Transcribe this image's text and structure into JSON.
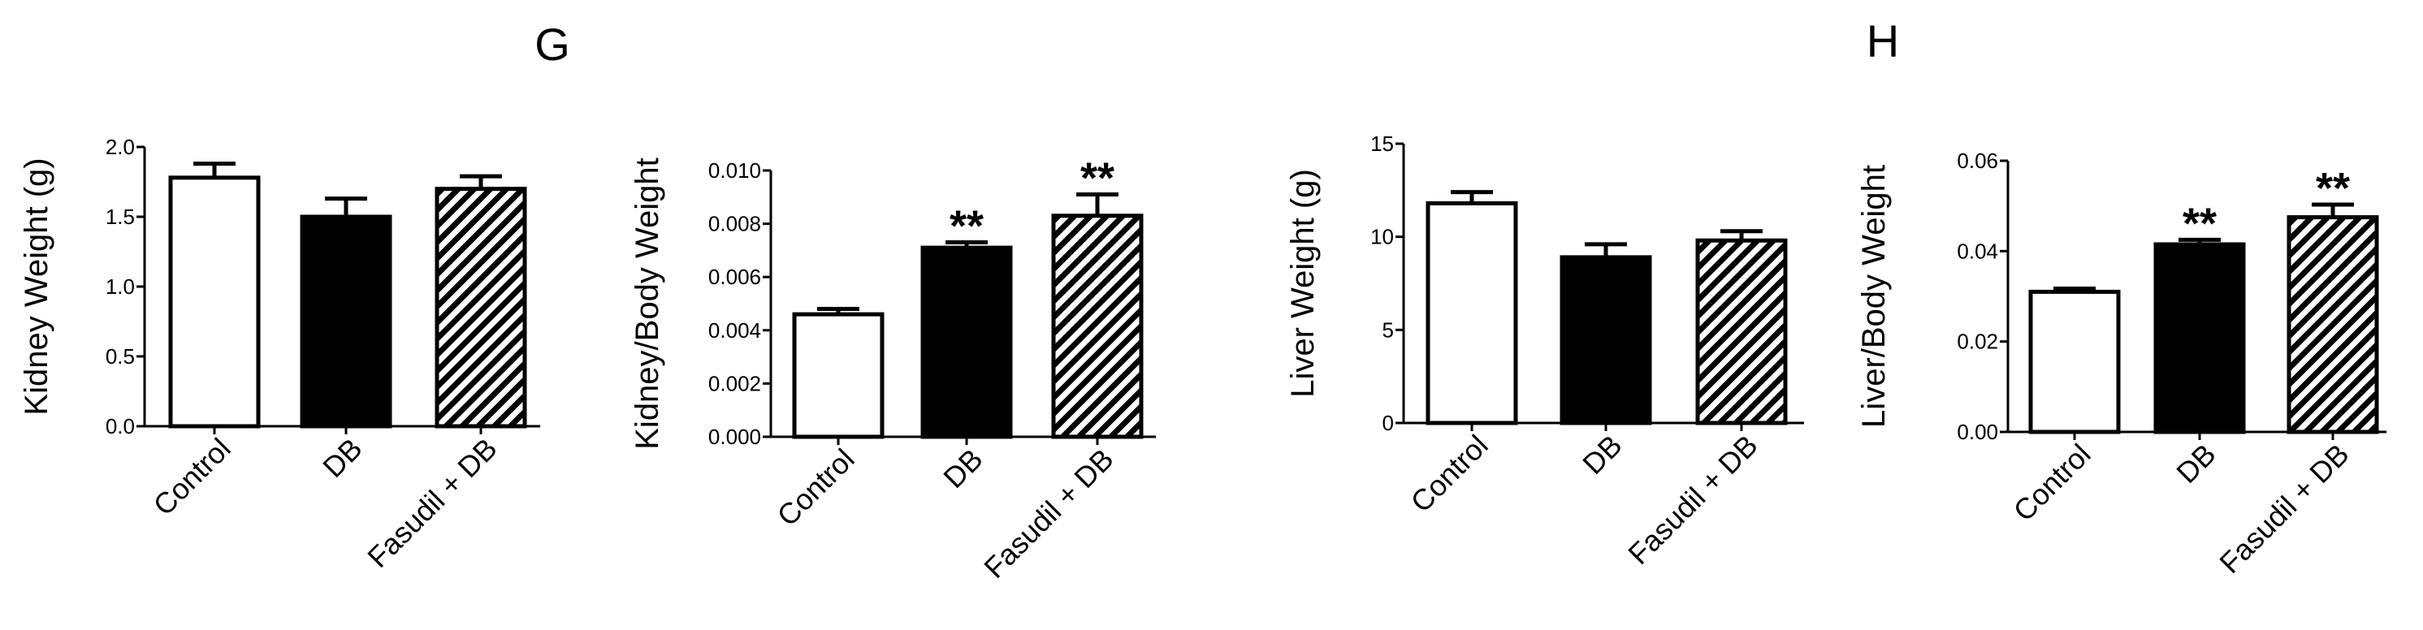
{
  "panel_labels": [
    "G",
    "H"
  ],
  "categories": [
    "Control",
    "DB",
    "Fasudil + DB"
  ],
  "bar_styles": [
    "white",
    "black",
    "hatched"
  ],
  "significance_marker": "**",
  "chart_data": [
    {
      "type": "bar",
      "title": "",
      "xlabel": "",
      "ylabel": "Kidney Weight (g)",
      "categories": [
        "Control",
        "DB",
        "Fasudil + DB"
      ],
      "values": [
        1.78,
        1.5,
        1.7
      ],
      "errors": [
        0.1,
        0.13,
        0.09
      ],
      "significance": [
        "",
        "",
        ""
      ],
      "ylim": [
        0,
        2.0
      ],
      "ticks": [
        "0.0",
        "0.5",
        "1.0",
        "1.5",
        "2.0"
      ]
    },
    {
      "type": "bar",
      "title": "",
      "xlabel": "",
      "ylabel": "Kidney/Body Weight",
      "categories": [
        "Control",
        "DB",
        "Fasudil + DB"
      ],
      "values": [
        0.0046,
        0.0071,
        0.0083
      ],
      "errors": [
        0.0002,
        0.0002,
        0.0008
      ],
      "significance": [
        "",
        "**",
        "**"
      ],
      "ylim": [
        0,
        0.01
      ],
      "ticks": [
        "0.000",
        "0.002",
        "0.004",
        "0.006",
        "0.008",
        "0.010"
      ]
    },
    {
      "type": "bar",
      "title": "",
      "xlabel": "",
      "ylabel": "Liver Weight (g)",
      "categories": [
        "Control",
        "DB",
        "Fasudil + DB"
      ],
      "values": [
        11.8,
        8.9,
        9.8
      ],
      "errors": [
        0.6,
        0.7,
        0.5
      ],
      "significance": [
        "",
        "",
        ""
      ],
      "ylim": [
        0,
        15
      ],
      "ticks": [
        "0",
        "5",
        "10",
        "15"
      ]
    },
    {
      "type": "bar",
      "title": "",
      "xlabel": "",
      "ylabel": "Liver/Body Weight",
      "categories": [
        "Control",
        "DB",
        "Fasudil + DB"
      ],
      "values": [
        0.031,
        0.0415,
        0.0475
      ],
      "errors": [
        0.0007,
        0.001,
        0.0028
      ],
      "significance": [
        "",
        "**",
        "**"
      ],
      "ylim": [
        0,
        0.06
      ],
      "ticks": [
        "0.00",
        "0.02",
        "0.04",
        "0.06"
      ]
    }
  ]
}
